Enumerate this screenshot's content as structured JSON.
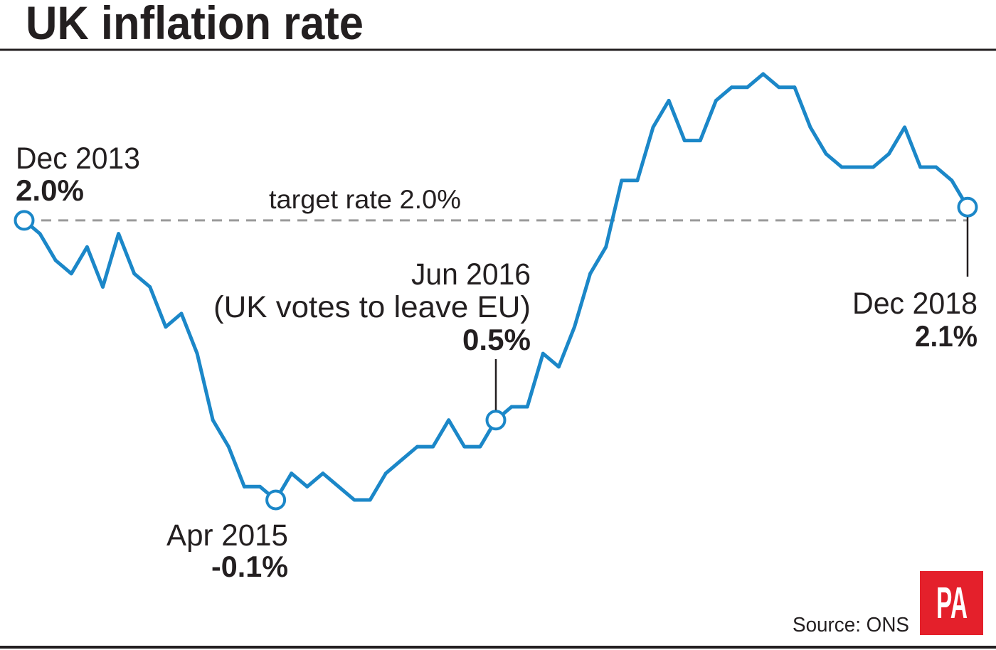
{
  "colors": {
    "series_line": "#1b87c8",
    "target_line": "#9a9a9a",
    "text": "#231f20",
    "logo": "#e4202b"
  },
  "source": "Source: ONS",
  "logo_text": "PA",
  "chart_data": {
    "type": "line",
    "title": "UK inflation rate",
    "xlabel": "",
    "ylabel": "",
    "grid": false,
    "ylim": [
      -0.1,
      3.1
    ],
    "values": [
      2.0,
      1.9,
      1.7,
      1.6,
      1.8,
      1.5,
      1.9,
      1.6,
      1.5,
      1.2,
      1.3,
      1.0,
      0.5,
      0.3,
      0.0,
      0.0,
      -0.1,
      0.1,
      0.0,
      0.1,
      0.0,
      -0.1,
      -0.1,
      0.1,
      0.2,
      0.3,
      0.3,
      0.5,
      0.3,
      0.3,
      0.5,
      0.6,
      0.6,
      1.0,
      0.9,
      1.2,
      1.6,
      1.8,
      2.3,
      2.3,
      2.7,
      2.9,
      2.6,
      2.6,
      2.9,
      3.0,
      3.0,
      3.1,
      3.0,
      3.0,
      2.7,
      2.5,
      2.4,
      2.4,
      2.4,
      2.5,
      2.7,
      2.4,
      2.4,
      2.3,
      2.1
    ],
    "reference_line": {
      "value": 2.0,
      "label": "target rate 2.0%"
    },
    "annotations": [
      {
        "index": 0,
        "date": "Dec 2013",
        "value_label": "2.0%"
      },
      {
        "index": 16,
        "date": "Apr 2015",
        "value_label": "-0.1%"
      },
      {
        "index": 30,
        "date": "Jun 2016",
        "note": "(UK votes to leave EU)",
        "value_label": "0.5%"
      },
      {
        "index": 60,
        "date": "Dec 2018",
        "value_label": "2.1%"
      }
    ]
  }
}
